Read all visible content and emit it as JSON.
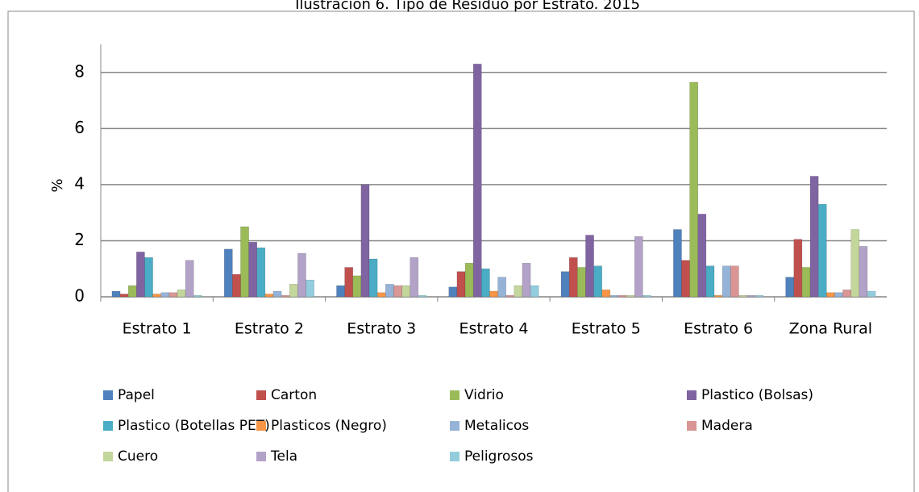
{
  "chart_data": {
    "type": "bar",
    "title": "Ilustración 6. Tipo de Residuo por Estrato. 2015",
    "y_label": "%",
    "categories": [
      "Estrato 1",
      "Estrato 2",
      "Estrato 3",
      "Estrato 4",
      "Estrato 5",
      "Estrato 6",
      "Zona Rural"
    ],
    "series": [
      {
        "name": "Papel",
        "color": "#4f81bd",
        "values": [
          0.2,
          1.7,
          0.4,
          0.35,
          0.9,
          2.4,
          0.7
        ]
      },
      {
        "name": "Carton",
        "color": "#c0504d",
        "values": [
          0.1,
          0.8,
          1.05,
          0.9,
          1.4,
          1.3,
          2.05
        ]
      },
      {
        "name": "Vidrio",
        "color": "#9bbb59",
        "values": [
          0.4,
          2.5,
          0.75,
          1.2,
          1.05,
          7.65,
          1.05
        ]
      },
      {
        "name": "Plastico (Bolsas)",
        "color": "#8064a2",
        "values": [
          1.6,
          1.95,
          4.0,
          8.3,
          2.2,
          2.95,
          4.3
        ]
      },
      {
        "name": "Plastico (Botellas PET)",
        "color": "#4bacc6",
        "values": [
          1.4,
          1.75,
          1.35,
          1.0,
          1.1,
          1.1,
          3.3
        ]
      },
      {
        "name": "Plasticos (Negro)",
        "color": "#f79646",
        "values": [
          0.1,
          0.1,
          0.15,
          0.2,
          0.25,
          0.05,
          0.15
        ]
      },
      {
        "name": "Metalicos",
        "color": "#95b3d7",
        "values": [
          0.15,
          0.2,
          0.45,
          0.7,
          0.05,
          1.1,
          0.15
        ]
      },
      {
        "name": "Madera",
        "color": "#d99694",
        "values": [
          0.15,
          0.05,
          0.4,
          0.05,
          0.05,
          1.1,
          0.25
        ]
      },
      {
        "name": "Cuero",
        "color": "#c3d69b",
        "values": [
          0.25,
          0.45,
          0.4,
          0.4,
          0.05,
          0.05,
          2.4
        ]
      },
      {
        "name": "Tela",
        "color": "#b3a2c7",
        "values": [
          1.3,
          1.55,
          1.4,
          1.2,
          2.15,
          0.05,
          1.8
        ]
      },
      {
        "name": "Peligrosos",
        "color": "#93cddd",
        "values": [
          0.05,
          0.6,
          0.05,
          0.4,
          0.05,
          0.05,
          0.2
        ]
      }
    ],
    "ylim": [
      0,
      9
    ],
    "yticks": [
      0,
      2,
      4,
      6,
      8
    ],
    "grid": true
  }
}
